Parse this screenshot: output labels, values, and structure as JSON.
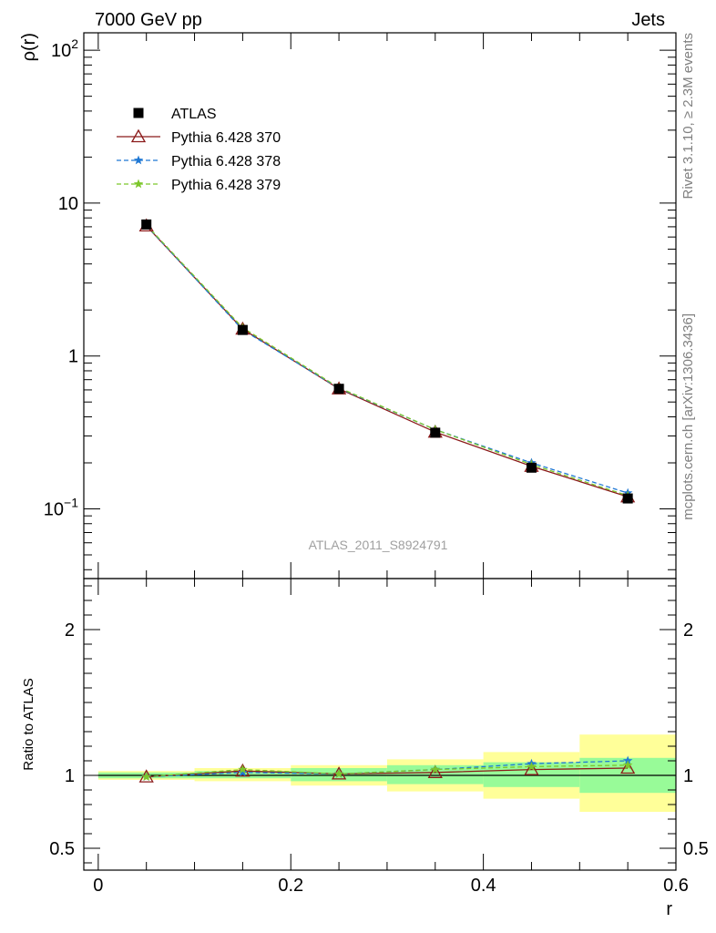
{
  "header": {
    "left": "7000 GeV pp",
    "right": "Jets"
  },
  "side_labels": {
    "rivet": "Rivet 3.1.10, ≥ 2.3M events",
    "source": "mcplots.cern.ch [arXiv:1306.3436]"
  },
  "watermark": "ATLAS_2011_S8924791",
  "colors": {
    "atlas": "#000000",
    "p370": "#8b1a1a",
    "p378": "#1f78d4",
    "p379": "#7cc62b",
    "band_inner": "#98fb98",
    "band_outer": "#ffff99"
  },
  "chart_data": [
    {
      "type": "line",
      "ylabel": "ρ(r)",
      "yscale": "log",
      "ylim": [
        0.035,
        130
      ],
      "xlim": [
        -0.015,
        0.6
      ],
      "y_ticks": [
        {
          "v": 100,
          "base": "10",
          "exp": "2"
        },
        {
          "v": 10,
          "base": "10",
          "exp": ""
        },
        {
          "v": 1,
          "base": "1",
          "exp": ""
        },
        {
          "v": 0.1,
          "base": "10",
          "exp": "−1"
        }
      ],
      "x": [
        0.05,
        0.15,
        0.25,
        0.35,
        0.45,
        0.55
      ],
      "series": [
        {
          "name": "ATLAS",
          "marker": "square",
          "values": [
            7.25,
            1.48,
            0.61,
            0.315,
            0.186,
            0.117
          ]
        },
        {
          "name": "Pythia 6.428 370",
          "marker": "triangle",
          "values": [
            7.1,
            1.5,
            0.61,
            0.318,
            0.19,
            0.12
          ]
        },
        {
          "name": "Pythia 6.428 378",
          "marker": "star",
          "values": [
            7.15,
            1.48,
            0.615,
            0.33,
            0.2,
            0.127
          ]
        },
        {
          "name": "Pythia 6.428 379",
          "marker": "star",
          "values": [
            7.2,
            1.53,
            0.62,
            0.33,
            0.195,
            0.122
          ]
        }
      ],
      "legend_position": "top-left"
    },
    {
      "type": "line",
      "xlabel": "r",
      "ylabel": "Ratio to ATLAS",
      "ylim": [
        0.35,
        2.35
      ],
      "xlim": [
        -0.015,
        0.6
      ],
      "x_ticks": [
        "0",
        "0.2",
        "0.4",
        "0.6"
      ],
      "y_ticks": [
        "0.5",
        "1",
        "2"
      ],
      "x": [
        0.05,
        0.15,
        0.25,
        0.35,
        0.45,
        0.55
      ],
      "bands": [
        {
          "x0": 0.0,
          "x1": 0.1,
          "inner": [
            0.98,
            1.02
          ],
          "outer": [
            0.97,
            1.03
          ]
        },
        {
          "x0": 0.1,
          "x1": 0.2,
          "inner": [
            0.98,
            1.03
          ],
          "outer": [
            0.96,
            1.05
          ]
        },
        {
          "x0": 0.2,
          "x1": 0.3,
          "inner": [
            0.96,
            1.05
          ],
          "outer": [
            0.93,
            1.07
          ]
        },
        {
          "x0": 0.3,
          "x1": 0.4,
          "inner": [
            0.94,
            1.07
          ],
          "outer": [
            0.89,
            1.11
          ]
        },
        {
          "x0": 0.4,
          "x1": 0.5,
          "inner": [
            0.92,
            1.09
          ],
          "outer": [
            0.84,
            1.16
          ]
        },
        {
          "x0": 0.5,
          "x1": 0.6,
          "inner": [
            0.88,
            1.12
          ],
          "outer": [
            0.75,
            1.28
          ]
        }
      ],
      "series": [
        {
          "name": "Pythia 6.428 370",
          "values": [
            0.99,
            1.03,
            1.01,
            1.02,
            1.04,
            1.05
          ]
        },
        {
          "name": "Pythia 6.428 378",
          "values": [
            0.99,
            1.02,
            1.01,
            1.04,
            1.08,
            1.1
          ]
        },
        {
          "name": "Pythia 6.428 379",
          "values": [
            0.99,
            1.04,
            1.01,
            1.04,
            1.06,
            1.07
          ]
        }
      ]
    }
  ]
}
